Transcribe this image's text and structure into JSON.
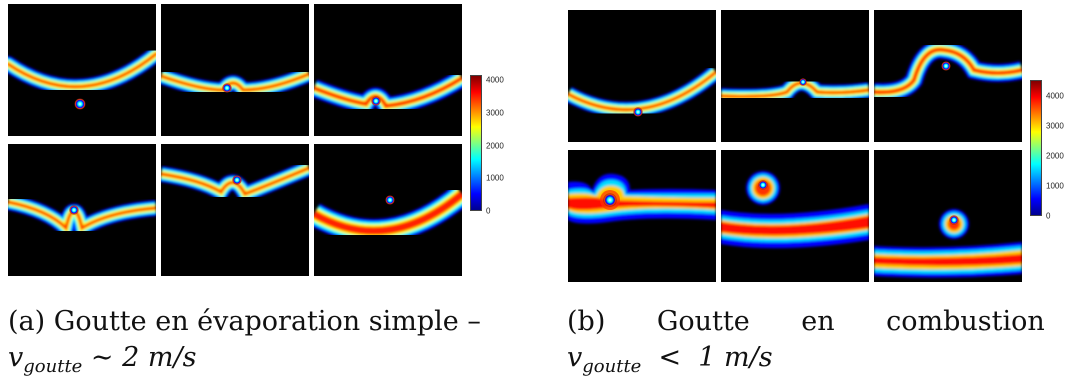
{
  "figure": {
    "subfigures": [
      {
        "id": "a",
        "colorbar_ticks": [
          "0",
          "1000",
          "2000",
          "3000",
          "4000"
        ],
        "caption_line1": "(a) Goutte en évaporation simple –",
        "caption_var": "v",
        "caption_sub": "goutte",
        "caption_rest": " ∼ 2 m/s"
      },
      {
        "id": "b",
        "colorbar_ticks": [
          "0",
          "1000",
          "2000",
          "3000",
          "4000"
        ],
        "caption_line1": "(b)      Goutte      en      combustion      –",
        "caption_var": "v",
        "caption_sub": "goutte",
        "caption_rest": "  <  1 m/s"
      }
    ]
  }
}
